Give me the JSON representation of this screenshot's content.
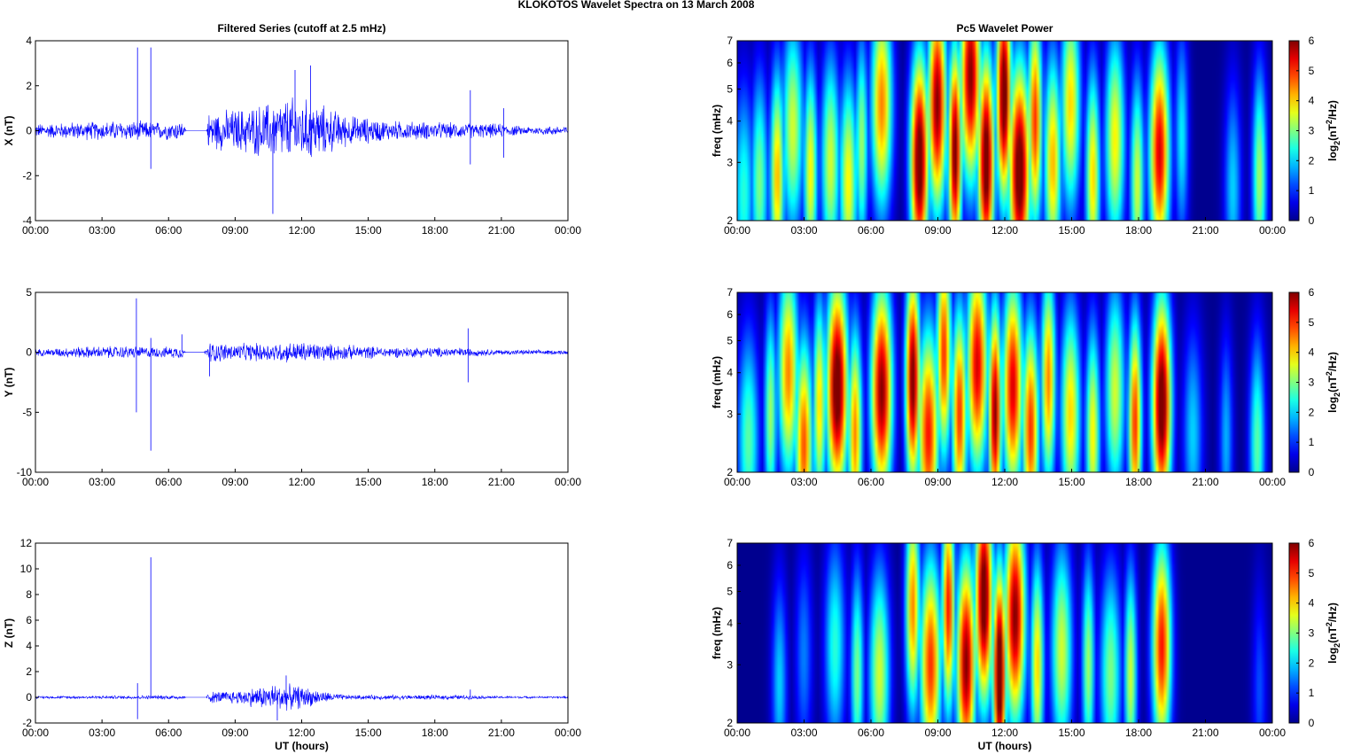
{
  "figure": {
    "title": "KLOKOTOS Wavelet Spectra on 13 March     2008"
  },
  "colors": {
    "trace": "#0000ff",
    "axes": "#000000",
    "jet": [
      "#00008f",
      "#0000ff",
      "#00ffff",
      "#ffff00",
      "#ff0000",
      "#800000"
    ]
  },
  "chart_data": [
    {
      "type": "line",
      "panel": "X filtered series",
      "title": "Filtered Series (cutoff at 2.5 mHz)",
      "xlabel": "",
      "ylabel": "X (nT)",
      "xticks": [
        "00:00",
        "03:00",
        "06:00",
        "09:00",
        "12:00",
        "15:00",
        "18:00",
        "21:00",
        "00:00"
      ],
      "xlim_hours": [
        0,
        24
      ],
      "ylim": [
        -4,
        4
      ],
      "yticks": [
        -4,
        -2,
        0,
        2,
        4
      ],
      "spikes": [
        {
          "t": 4.6,
          "v": 3.7
        },
        {
          "t": 4.6,
          "v": -0.4
        },
        {
          "t": 5.2,
          "v": 3.7
        },
        {
          "t": 5.2,
          "v": -1.7
        },
        {
          "t": 10.7,
          "v": -3.7
        },
        {
          "t": 11.7,
          "v": 2.7
        },
        {
          "t": 12.4,
          "v": 2.9
        },
        {
          "t": 19.6,
          "v": 1.8
        },
        {
          "t": 19.6,
          "v": -1.5
        },
        {
          "t": 21.1,
          "v": 1.0
        },
        {
          "t": 21.1,
          "v": -1.2
        }
      ],
      "envelope": [
        {
          "t": 0,
          "a": 0.35
        },
        {
          "t": 2,
          "a": 0.45
        },
        {
          "t": 4,
          "a": 0.5
        },
        {
          "t": 5.5,
          "a": 0.45
        },
        {
          "t": 6.6,
          "a": 0.5
        },
        {
          "t": 6.8,
          "a": 0.0
        },
        {
          "t": 7.7,
          "a": 0.0
        },
        {
          "t": 7.8,
          "a": 0.9
        },
        {
          "t": 9,
          "a": 1.1
        },
        {
          "t": 10.5,
          "a": 1.4
        },
        {
          "t": 11.5,
          "a": 1.7
        },
        {
          "t": 12.5,
          "a": 1.5
        },
        {
          "t": 14,
          "a": 0.8
        },
        {
          "t": 16,
          "a": 0.5
        },
        {
          "t": 19,
          "a": 0.4
        },
        {
          "t": 21,
          "a": 0.35
        },
        {
          "t": 22,
          "a": 0.2
        },
        {
          "t": 24,
          "a": 0.25
        }
      ]
    },
    {
      "type": "heatmap",
      "panel": "X wavelet power",
      "title": "Pc5 Wavelet Power",
      "xlabel": "",
      "ylabel": "freq (mHz)",
      "colorbar_label": "log2(nT2/Hz)",
      "xticks": [
        "00:00",
        "03:00",
        "06:00",
        "09:00",
        "12:00",
        "15:00",
        "18:00",
        "21:00",
        "00:00"
      ],
      "xlim_hours": [
        0,
        24
      ],
      "ylim": [
        2,
        7
      ],
      "ytick_labels": [
        "2",
        "3",
        "4",
        "5",
        "6",
        "7"
      ],
      "yscale": "log",
      "clim": [
        0,
        6
      ],
      "colorbar_ticks": [
        0,
        1,
        2,
        3,
        4,
        5,
        6
      ],
      "blobs": [
        {
          "t": 0.3,
          "f": 2.4,
          "p": 2.5
        },
        {
          "t": 1.0,
          "f": 2.6,
          "p": 3.0
        },
        {
          "t": 1.8,
          "f": 2.7,
          "p": 4.2
        },
        {
          "t": 2.5,
          "f": 3.8,
          "p": 3.5
        },
        {
          "t": 3.3,
          "f": 2.8,
          "p": 3.8
        },
        {
          "t": 4.2,
          "f": 3.0,
          "p": 3.5
        },
        {
          "t": 5.0,
          "f": 2.6,
          "p": 3.8
        },
        {
          "t": 5.6,
          "f": 3.4,
          "p": 3.2
        },
        {
          "t": 6.5,
          "f": 4.5,
          "p": 4.5
        },
        {
          "t": 8.2,
          "f": 3.0,
          "p": 6.5
        },
        {
          "t": 9.0,
          "f": 4.5,
          "p": 6.0
        },
        {
          "t": 9.8,
          "f": 3.2,
          "p": 6.2
        },
        {
          "t": 10.5,
          "f": 5.5,
          "p": 6.0
        },
        {
          "t": 11.2,
          "f": 3.0,
          "p": 6.5
        },
        {
          "t": 12.0,
          "f": 4.8,
          "p": 6.5
        },
        {
          "t": 12.7,
          "f": 2.8,
          "p": 6.5
        },
        {
          "t": 13.4,
          "f": 4.0,
          "p": 5.0
        },
        {
          "t": 14.2,
          "f": 3.0,
          "p": 4.2
        },
        {
          "t": 15.0,
          "f": 4.5,
          "p": 4.0
        },
        {
          "t": 16.0,
          "f": 2.7,
          "p": 4.0
        },
        {
          "t": 17.0,
          "f": 3.5,
          "p": 3.8
        },
        {
          "t": 18.0,
          "f": 2.6,
          "p": 3.5
        },
        {
          "t": 19.0,
          "f": 3.2,
          "p": 5.5
        },
        {
          "t": 20.0,
          "f": 3.6,
          "p": 2.2
        },
        {
          "t": 22.3,
          "f": 2.5,
          "p": 2.0
        },
        {
          "t": 23.5,
          "f": 2.7,
          "p": 3.2
        }
      ]
    },
    {
      "type": "line",
      "panel": "Y filtered series",
      "title": "",
      "xlabel": "",
      "ylabel": "Y (nT)",
      "xticks": [
        "00:00",
        "03:00",
        "06:00",
        "09:00",
        "12:00",
        "15:00",
        "18:00",
        "21:00",
        "00:00"
      ],
      "xlim_hours": [
        0,
        24
      ],
      "ylim": [
        -10,
        5
      ],
      "yticks": [
        -10,
        -5,
        0,
        5
      ],
      "spikes": [
        {
          "t": 4.55,
          "v": 4.5
        },
        {
          "t": 4.55,
          "v": -5.0
        },
        {
          "t": 5.2,
          "v": 1.2
        },
        {
          "t": 5.2,
          "v": -8.2
        },
        {
          "t": 6.6,
          "v": 1.5
        },
        {
          "t": 7.85,
          "v": -2.0
        },
        {
          "t": 19.5,
          "v": 2.0
        },
        {
          "t": 19.5,
          "v": -2.5
        }
      ],
      "envelope": [
        {
          "t": 0,
          "a": 0.3
        },
        {
          "t": 2,
          "a": 0.55
        },
        {
          "t": 4,
          "a": 0.6
        },
        {
          "t": 5.8,
          "a": 0.5
        },
        {
          "t": 6.6,
          "a": 0.6
        },
        {
          "t": 6.8,
          "a": 0.0
        },
        {
          "t": 7.6,
          "a": 0.0
        },
        {
          "t": 7.8,
          "a": 1.0
        },
        {
          "t": 9,
          "a": 0.8
        },
        {
          "t": 12,
          "a": 1.0
        },
        {
          "t": 14,
          "a": 0.7
        },
        {
          "t": 16,
          "a": 0.5
        },
        {
          "t": 19,
          "a": 0.45
        },
        {
          "t": 21,
          "a": 0.25
        },
        {
          "t": 24,
          "a": 0.2
        }
      ]
    },
    {
      "type": "heatmap",
      "panel": "Y wavelet power",
      "title": "",
      "xlabel": "",
      "ylabel": "freq (mHz)",
      "colorbar_label": "log2(nT2/Hz)",
      "xticks": [
        "00:00",
        "03:00",
        "06:00",
        "09:00",
        "12:00",
        "15:00",
        "18:00",
        "21:00",
        "00:00"
      ],
      "xlim_hours": [
        0,
        24
      ],
      "ylim": [
        2,
        7
      ],
      "ytick_labels": [
        "2",
        "3",
        "4",
        "5",
        "6",
        "7"
      ],
      "yscale": "log",
      "clim": [
        0,
        6
      ],
      "colorbar_ticks": [
        0,
        1,
        2,
        3,
        4,
        5,
        6
      ],
      "blobs": [
        {
          "t": 0.5,
          "f": 2.5,
          "p": 2.8
        },
        {
          "t": 1.5,
          "f": 3.0,
          "p": 3.2
        },
        {
          "t": 2.3,
          "f": 4.0,
          "p": 4.5
        },
        {
          "t": 3.0,
          "f": 2.4,
          "p": 4.8
        },
        {
          "t": 3.7,
          "f": 3.2,
          "p": 4.0
        },
        {
          "t": 4.5,
          "f": 3.6,
          "p": 6.5
        },
        {
          "t": 5.3,
          "f": 2.6,
          "p": 4.5
        },
        {
          "t": 6.5,
          "f": 3.5,
          "p": 6.0
        },
        {
          "t": 7.9,
          "f": 3.8,
          "p": 6.2
        },
        {
          "t": 8.6,
          "f": 2.6,
          "p": 5.2
        },
        {
          "t": 9.3,
          "f": 4.6,
          "p": 5.0
        },
        {
          "t": 10.0,
          "f": 3.0,
          "p": 5.0
        },
        {
          "t": 10.8,
          "f": 4.2,
          "p": 5.5
        },
        {
          "t": 11.6,
          "f": 3.0,
          "p": 6.0
        },
        {
          "t": 12.4,
          "f": 3.6,
          "p": 5.5
        },
        {
          "t": 13.2,
          "f": 2.7,
          "p": 5.0
        },
        {
          "t": 14.0,
          "f": 3.8,
          "p": 4.5
        },
        {
          "t": 15.0,
          "f": 3.0,
          "p": 4.0
        },
        {
          "t": 16.0,
          "f": 2.6,
          "p": 3.8
        },
        {
          "t": 17.0,
          "f": 3.5,
          "p": 3.5
        },
        {
          "t": 17.9,
          "f": 2.8,
          "p": 5.0
        },
        {
          "t": 19.1,
          "f": 3.2,
          "p": 6.5
        },
        {
          "t": 20.5,
          "f": 2.6,
          "p": 2.0
        },
        {
          "t": 22.0,
          "f": 2.5,
          "p": 1.8
        },
        {
          "t": 23.4,
          "f": 2.4,
          "p": 2.8
        }
      ]
    },
    {
      "type": "line",
      "panel": "Z filtered series",
      "title": "",
      "xlabel": "UT (hours)",
      "ylabel": "Z (nT)",
      "xticks": [
        "00:00",
        "03:00",
        "06:00",
        "09:00",
        "12:00",
        "15:00",
        "18:00",
        "21:00",
        "00:00"
      ],
      "xlim_hours": [
        0,
        24
      ],
      "ylim": [
        -2,
        12
      ],
      "yticks": [
        -2,
        0,
        2,
        4,
        6,
        8,
        10,
        12
      ],
      "spikes": [
        {
          "t": 4.6,
          "v": 1.1
        },
        {
          "t": 4.6,
          "v": -1.7
        },
        {
          "t": 5.2,
          "v": 10.9
        },
        {
          "t": 11.3,
          "v": 1.7
        },
        {
          "t": 10.9,
          "v": -1.8
        },
        {
          "t": 19.6,
          "v": 0.6
        }
      ],
      "envelope": [
        {
          "t": 0,
          "a": 0.1
        },
        {
          "t": 4,
          "a": 0.15
        },
        {
          "t": 6.6,
          "a": 0.2
        },
        {
          "t": 6.8,
          "a": 0.0
        },
        {
          "t": 7.7,
          "a": 0.0
        },
        {
          "t": 7.8,
          "a": 0.5
        },
        {
          "t": 9,
          "a": 0.6
        },
        {
          "t": 10.8,
          "a": 1.2
        },
        {
          "t": 12,
          "a": 1.0
        },
        {
          "t": 13,
          "a": 0.5
        },
        {
          "t": 14,
          "a": 0.2
        },
        {
          "t": 19,
          "a": 0.2
        },
        {
          "t": 21,
          "a": 0.1
        },
        {
          "t": 24,
          "a": 0.08
        }
      ]
    },
    {
      "type": "heatmap",
      "panel": "Z wavelet power",
      "title": "",
      "xlabel": "UT (hours)",
      "ylabel": "freq (mHz)",
      "colorbar_label": "log2(nT2/Hz)",
      "xticks": [
        "00:00",
        "03:00",
        "06:00",
        "09:00",
        "12:00",
        "15:00",
        "18:00",
        "21:00",
        "00:00"
      ],
      "xlim_hours": [
        0,
        24
      ],
      "ylim": [
        2,
        7
      ],
      "ytick_labels": [
        "2",
        "3",
        "4",
        "5",
        "6",
        "7"
      ],
      "yscale": "log",
      "clim": [
        0,
        6
      ],
      "colorbar_ticks": [
        0,
        1,
        2,
        3,
        4,
        5,
        6
      ],
      "blobs": [
        {
          "t": 1.9,
          "f": 2.6,
          "p": 2.0
        },
        {
          "t": 3.0,
          "f": 3.2,
          "p": 1.5
        },
        {
          "t": 4.4,
          "f": 3.4,
          "p": 2.5
        },
        {
          "t": 5.4,
          "f": 2.8,
          "p": 3.0
        },
        {
          "t": 6.4,
          "f": 2.8,
          "p": 3.5
        },
        {
          "t": 7.9,
          "f": 4.5,
          "p": 4.5
        },
        {
          "t": 8.7,
          "f": 3.0,
          "p": 5.0
        },
        {
          "t": 9.5,
          "f": 4.5,
          "p": 5.2
        },
        {
          "t": 10.3,
          "f": 3.0,
          "p": 6.0
        },
        {
          "t": 11.1,
          "f": 4.8,
          "p": 6.5
        },
        {
          "t": 11.8,
          "f": 2.8,
          "p": 6.8
        },
        {
          "t": 12.5,
          "f": 4.2,
          "p": 6.0
        },
        {
          "t": 13.5,
          "f": 3.0,
          "p": 4.0
        },
        {
          "t": 14.6,
          "f": 3.3,
          "p": 3.5
        },
        {
          "t": 15.8,
          "f": 3.0,
          "p": 3.2
        },
        {
          "t": 16.8,
          "f": 2.8,
          "p": 3.0
        },
        {
          "t": 17.7,
          "f": 2.8,
          "p": 3.5
        },
        {
          "t": 19.1,
          "f": 3.4,
          "p": 5.2
        },
        {
          "t": 23.5,
          "f": 2.5,
          "p": 1.2
        }
      ]
    }
  ]
}
